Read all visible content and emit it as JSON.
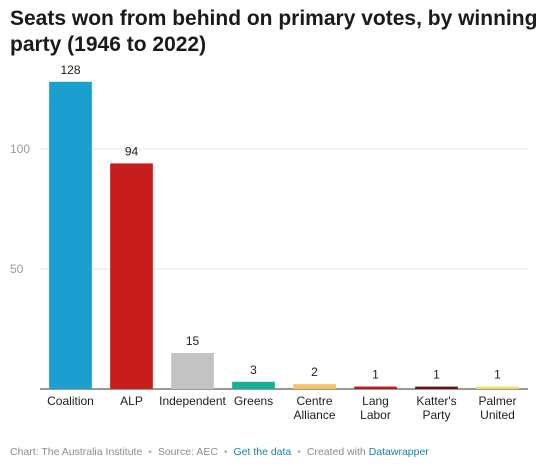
{
  "chart_data": {
    "type": "bar",
    "title": "Seats won from behind on primary votes, by winning party (1946 to 2022)",
    "categories": [
      [
        "Coalition"
      ],
      [
        "ALP"
      ],
      [
        "Independent"
      ],
      [
        "Greens"
      ],
      [
        "Centre",
        "Alliance"
      ],
      [
        "Lang",
        "Labor"
      ],
      [
        "Katter's",
        "Party"
      ],
      [
        "Palmer",
        "United"
      ]
    ],
    "values": [
      128,
      94,
      15,
      3,
      2,
      1,
      1,
      1
    ],
    "value_labels": [
      "128",
      "94",
      "15",
      "3",
      "2",
      "1",
      "1",
      "1"
    ],
    "colors": [
      "#1a9fd0",
      "#c71e1d",
      "#c3c3c3",
      "#16b097",
      "#f5c466",
      "#b71a1a",
      "#6b0f0f",
      "#f2e057"
    ],
    "ylim": [
      0,
      130
    ],
    "yticks": [
      50,
      100
    ],
    "ytick_labels": [
      "50",
      "100"
    ],
    "grid": true,
    "xlabel": "",
    "ylabel": ""
  },
  "footer": {
    "chart_credit": "Chart: The Australia Institute",
    "source": "Source: AEC",
    "get_data": "Get the data",
    "created_with": "Created with",
    "tool": "Datawrapper",
    "separator": "•"
  }
}
